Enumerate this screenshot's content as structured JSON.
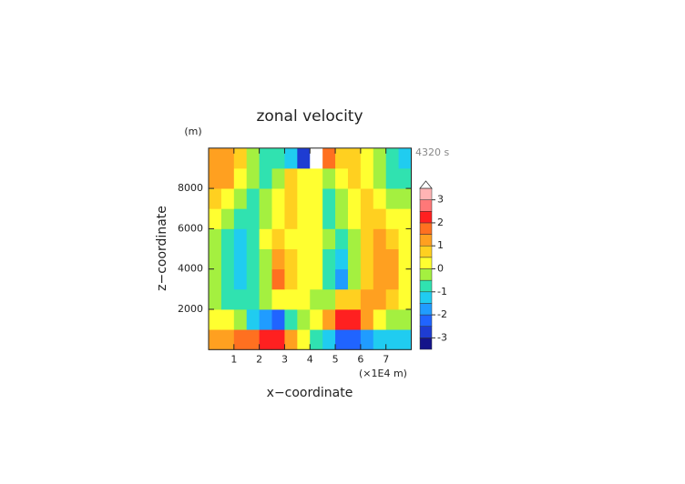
{
  "chart_data": {
    "type": "heatmap",
    "title": "zonal velocity",
    "y_unit": "(m)",
    "time_label": "4320 s",
    "x_label": "x−coordinate",
    "y_label": "z−coordinate",
    "x_unit": "(×1E4 m)",
    "xlim": [
      0,
      8
    ],
    "ylim": [
      0,
      10000
    ],
    "xticks": [
      1,
      2,
      3,
      4,
      5,
      6,
      7
    ],
    "yticks": [
      2000,
      4000,
      6000,
      8000
    ],
    "x": [
      0.25,
      0.75,
      1.25,
      1.75,
      2.25,
      2.75,
      3.25,
      3.75,
      4.25,
      4.75,
      5.25,
      5.75,
      6.25,
      6.75,
      7.25,
      7.75
    ],
    "z": [
      500,
      1500,
      2500,
      3500,
      4500,
      5500,
      6500,
      7500,
      8500,
      9500
    ],
    "values": [
      [
        1.2,
        1.3,
        1.5,
        1.8,
        2.2,
        2.3,
        1.2,
        0.3,
        -0.8,
        -1.5,
        -2.2,
        -2.3,
        -1.8,
        -1.4,
        -1.2,
        -1.1
      ],
      [
        0.3,
        0.1,
        -0.4,
        -1.2,
        -2.0,
        -2.1,
        -1.0,
        -0.3,
        0.3,
        1.0,
        2.0,
        2.1,
        1.2,
        0.4,
        -0.1,
        -0.3
      ],
      [
        -0.3,
        -0.6,
        -1.0,
        -1.0,
        -0.5,
        0.2,
        0.3,
        0.1,
        -0.1,
        -0.3,
        0.5,
        0.8,
        1.0,
        1.0,
        0.6,
        0.3
      ],
      [
        -0.2,
        -1.0,
        -1.1,
        -1.0,
        -0.3,
        1.6,
        0.7,
        0.3,
        0.2,
        -0.7,
        -1.7,
        -0.5,
        0.8,
        1.1,
        1.0,
        0.4
      ],
      [
        -0.2,
        -1.0,
        -1.2,
        -1.0,
        -0.2,
        1.3,
        0.6,
        0.4,
        0.4,
        -0.6,
        -1.5,
        -0.4,
        0.8,
        1.1,
        1.0,
        0.4
      ],
      [
        -0.1,
        -0.8,
        -1.1,
        -0.8,
        0.2,
        0.8,
        0.3,
        0.1,
        0.0,
        -0.4,
        -0.9,
        -0.2,
        0.7,
        1.1,
        0.9,
        0.3
      ],
      [
        0.2,
        -0.3,
        -0.8,
        -0.6,
        -0.2,
        0.3,
        0.7,
        0.3,
        0.2,
        -0.6,
        -0.3,
        0.2,
        0.6,
        0.8,
        0.4,
        0.0
      ],
      [
        0.7,
        0.4,
        -0.3,
        -0.7,
        -0.4,
        0.2,
        0.8,
        0.2,
        0.0,
        -0.8,
        -0.2,
        0.3,
        0.6,
        0.4,
        -0.3,
        -0.5
      ],
      [
        1.1,
        1.0,
        0.4,
        -0.3,
        -0.8,
        -0.3,
        0.6,
        0.3,
        0.0,
        -0.4,
        0.3,
        0.8,
        0.4,
        -0.2,
        -0.8,
        -1.0
      ],
      [
        1.2,
        1.0,
        0.5,
        -0.4,
        -0.9,
        -0.7,
        -1.5,
        -3.0,
        3.8,
        1.5,
        0.8,
        0.6,
        0.3,
        -0.3,
        -0.9,
        -1.1
      ]
    ],
    "levels": [
      -3.5,
      -3,
      -2.5,
      -2,
      -1.5,
      -1,
      -0.5,
      0,
      0.5,
      1,
      1.5,
      2,
      2.5,
      3,
      3.5
    ],
    "colors": [
      "#14148a",
      "#1e3cd2",
      "#2064ff",
      "#209cff",
      "#20ccf0",
      "#30e2b0",
      "#a4f040",
      "#ffff30",
      "#ffd020",
      "#ffa020",
      "#ff7020",
      "#ff2020",
      "#ff7878",
      "#ffb4b4"
    ],
    "over_color": "#ffffff",
    "cticks": [
      -3,
      -2,
      -1,
      0,
      1,
      2,
      3
    ]
  }
}
